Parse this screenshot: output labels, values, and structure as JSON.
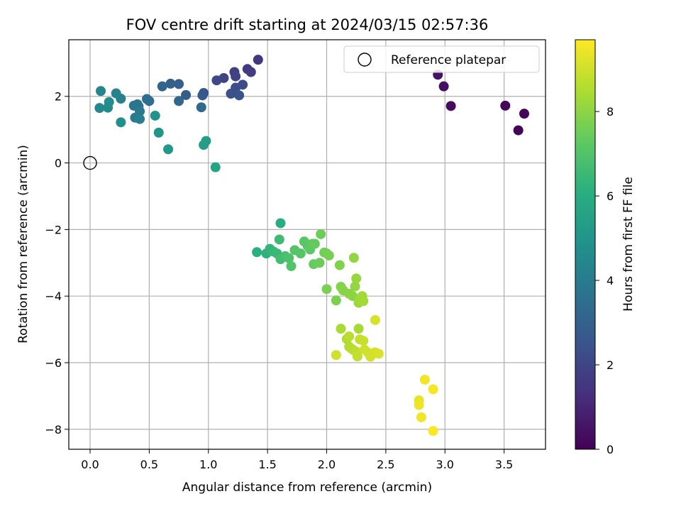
{
  "chart_data": {
    "type": "scatter",
    "title": "FOV centre drift starting at 2024/03/15 02:57:36",
    "xlabel": "Angular distance from reference (arcmin)",
    "ylabel": "Rotation from reference (arcmin)",
    "xlim": [
      -0.18,
      3.85
    ],
    "ylim": [
      -8.6,
      3.7
    ],
    "xticks": [
      "0.0",
      "0.5",
      "1.0",
      "1.5",
      "2.0",
      "2.5",
      "3.0",
      "3.5"
    ],
    "yticks": [
      "−8",
      "−6",
      "−4",
      "−2",
      "0",
      "2"
    ],
    "xtick_values": [
      0,
      0.5,
      1.0,
      1.5,
      2.0,
      2.5,
      3.0,
      3.5
    ],
    "ytick_values": [
      -8,
      -6,
      -4,
      -2,
      0,
      2
    ],
    "grid": true,
    "legend": {
      "position": "top-right",
      "label": "Reference platepar"
    },
    "reference_point": {
      "x": 0,
      "y": 0
    },
    "colorbar": {
      "label": "Hours from first FF file",
      "range": [
        0,
        9.7
      ],
      "ticks": [
        "0",
        "2",
        "4",
        "6",
        "8"
      ],
      "tick_values": [
        0,
        2,
        4,
        6,
        8
      ],
      "colormap": "viridis"
    },
    "points": [
      [
        3.62,
        0.98,
        0.1
      ],
      [
        3.67,
        1.48,
        0.15
      ],
      [
        3.51,
        1.72,
        0.2
      ],
      [
        3.05,
        1.71,
        0.3
      ],
      [
        2.99,
        2.3,
        0.4
      ],
      [
        2.94,
        2.65,
        0.5
      ],
      [
        1.42,
        3.1,
        1.5
      ],
      [
        1.33,
        2.82,
        1.6
      ],
      [
        1.36,
        2.73,
        1.7
      ],
      [
        1.22,
        2.73,
        1.8
      ],
      [
        1.23,
        2.6,
        1.9
      ],
      [
        1.13,
        2.55,
        2.0
      ],
      [
        1.07,
        2.48,
        2.1
      ],
      [
        1.29,
        2.35,
        2.2
      ],
      [
        1.23,
        2.26,
        2.3
      ],
      [
        1.19,
        2.08,
        2.4
      ],
      [
        1.26,
        2.03,
        2.5
      ],
      [
        0.96,
        2.1,
        2.6
      ],
      [
        0.95,
        2.03,
        2.7
      ],
      [
        0.81,
        2.04,
        2.8
      ],
      [
        0.75,
        2.37,
        2.9
      ],
      [
        0.68,
        2.38,
        3.0
      ],
      [
        0.61,
        2.3,
        3.1
      ],
      [
        0.75,
        1.86,
        3.2
      ],
      [
        0.94,
        1.67,
        3.3
      ],
      [
        0.5,
        1.86,
        3.4
      ],
      [
        0.48,
        1.92,
        3.5
      ],
      [
        0.4,
        1.76,
        3.6
      ],
      [
        0.41,
        1.7,
        3.7
      ],
      [
        0.37,
        1.72,
        3.8
      ],
      [
        0.42,
        1.55,
        3.9
      ],
      [
        0.38,
        1.36,
        4.0
      ],
      [
        0.42,
        1.32,
        4.1
      ],
      [
        0.26,
        1.93,
        4.2
      ],
      [
        0.22,
        2.09,
        4.3
      ],
      [
        0.09,
        2.16,
        4.4
      ],
      [
        0.08,
        1.65,
        4.5
      ],
      [
        0.15,
        1.66,
        4.6
      ],
      [
        0.16,
        1.83,
        4.7
      ],
      [
        0.26,
        1.22,
        4.8
      ],
      [
        0.55,
        1.42,
        4.9
      ],
      [
        0.58,
        0.91,
        5.0
      ],
      [
        0.66,
        0.41,
        5.1
      ],
      [
        0.98,
        0.66,
        5.3
      ],
      [
        0.96,
        0.54,
        5.4
      ],
      [
        1.06,
        -0.13,
        5.6
      ],
      [
        1.61,
        -1.81,
        6.0
      ],
      [
        1.41,
        -2.68,
        6.1
      ],
      [
        1.49,
        -2.72,
        6.2
      ],
      [
        1.52,
        -2.58,
        6.3
      ],
      [
        1.55,
        -2.66,
        6.4
      ],
      [
        1.58,
        -2.72,
        6.5
      ],
      [
        1.6,
        -2.3,
        6.6
      ],
      [
        1.61,
        -2.89,
        6.7
      ],
      [
        1.65,
        -2.8,
        6.8
      ],
      [
        1.68,
        -2.86,
        6.9
      ],
      [
        1.7,
        -3.1,
        7.0
      ],
      [
        1.73,
        -2.62,
        7.05
      ],
      [
        1.78,
        -2.72,
        7.1
      ],
      [
        1.81,
        -2.36,
        7.15
      ],
      [
        1.84,
        -2.5,
        7.2
      ],
      [
        1.86,
        -2.6,
        7.25
      ],
      [
        1.88,
        -2.43,
        7.3
      ],
      [
        1.9,
        -2.43,
        7.35
      ],
      [
        1.89,
        -3.04,
        7.4
      ],
      [
        1.94,
        -3.0,
        7.45
      ],
      [
        1.95,
        -2.14,
        7.5
      ],
      [
        1.98,
        -2.69,
        7.55
      ],
      [
        2.0,
        -2.72,
        7.6
      ],
      [
        2.02,
        -2.78,
        7.65
      ],
      [
        2.0,
        -3.79,
        7.7
      ],
      [
        2.08,
        -4.13,
        7.75
      ],
      [
        2.11,
        -3.07,
        7.8
      ],
      [
        2.12,
        -3.72,
        7.85
      ],
      [
        2.14,
        -3.83,
        7.9
      ],
      [
        2.19,
        -3.93,
        7.95
      ],
      [
        2.22,
        -4.0,
        8.0
      ],
      [
        2.23,
        -2.85,
        8.05
      ],
      [
        2.24,
        -3.71,
        8.1
      ],
      [
        2.25,
        -3.47,
        8.15
      ],
      [
        2.27,
        -4.2,
        8.2
      ],
      [
        2.28,
        -4.08,
        8.25
      ],
      [
        2.3,
        -4.0,
        8.3
      ],
      [
        2.31,
        -4.15,
        8.35
      ],
      [
        2.27,
        -4.98,
        8.4
      ],
      [
        2.12,
        -4.98,
        8.45
      ],
      [
        2.17,
        -5.29,
        8.5
      ],
      [
        2.19,
        -5.52,
        8.55
      ],
      [
        2.21,
        -5.58,
        8.6
      ],
      [
        2.23,
        -5.63,
        8.65
      ],
      [
        2.19,
        -5.21,
        8.7
      ],
      [
        2.25,
        -5.67,
        8.75
      ],
      [
        2.26,
        -5.81,
        8.8
      ],
      [
        2.28,
        -5.3,
        8.85
      ],
      [
        2.31,
        -5.34,
        8.9
      ],
      [
        2.32,
        -5.61,
        8.95
      ],
      [
        2.35,
        -5.7,
        9.0
      ],
      [
        2.37,
        -5.82,
        9.05
      ],
      [
        2.41,
        -5.69,
        9.1
      ],
      [
        2.44,
        -5.73,
        9.15
      ],
      [
        2.41,
        -4.72,
        9.1
      ],
      [
        2.08,
        -5.77,
        9.0
      ],
      [
        2.78,
        -7.13,
        9.4
      ],
      [
        2.78,
        -7.27,
        9.45
      ],
      [
        2.8,
        -7.64,
        9.5
      ],
      [
        2.83,
        -6.51,
        9.55
      ],
      [
        2.9,
        -6.8,
        9.6
      ],
      [
        2.9,
        -8.05,
        9.65
      ]
    ]
  }
}
